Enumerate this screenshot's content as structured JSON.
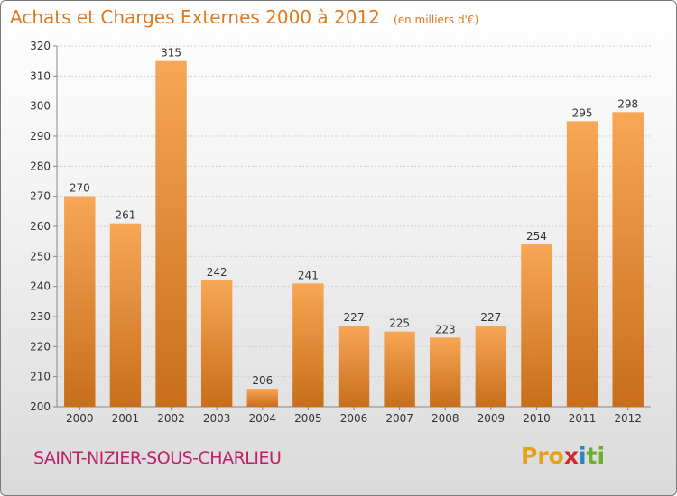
{
  "title": "Achats et Charges Externes 2000 à 2012",
  "subtitle": "(en milliers d'€)",
  "commune": "SAINT-NIZIER-SOUS-CHARLIEU",
  "logo": {
    "p1": "Pro",
    "p2": "x",
    "p3": "i",
    "p4": "ti"
  },
  "colors": {
    "bar_light": "#f7a755",
    "bar_dark": "#c86e1c",
    "title": "#e07a1e",
    "commune": "#c0206a"
  },
  "chart_data": {
    "type": "bar",
    "title": "Achats et Charges Externes 2000 à 2012",
    "subtitle": "(en milliers d'€)",
    "categories": [
      "2000",
      "2001",
      "2002",
      "2003",
      "2004",
      "2005",
      "2006",
      "2007",
      "2008",
      "2009",
      "2010",
      "2011",
      "2012"
    ],
    "values": [
      270,
      261,
      315,
      242,
      206,
      241,
      227,
      225,
      223,
      227,
      254,
      295,
      298
    ],
    "ylim": [
      200,
      320
    ],
    "yticks": [
      200,
      210,
      220,
      230,
      240,
      250,
      260,
      270,
      280,
      290,
      300,
      310,
      320
    ],
    "grid": true,
    "data_labels": true
  }
}
